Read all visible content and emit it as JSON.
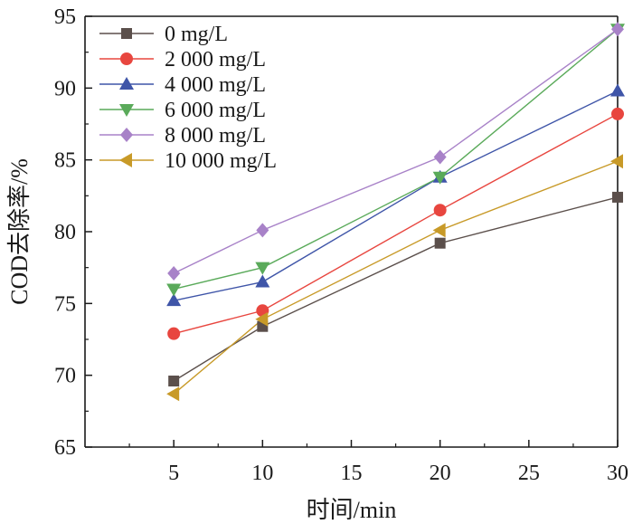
{
  "chart_data": {
    "type": "line",
    "title": "",
    "xlabel": "时间/min",
    "ylabel": "COD去除率/%",
    "x": [
      5,
      10,
      20,
      30
    ],
    "xlim": [
      0,
      30
    ],
    "ylim": [
      65,
      95
    ],
    "xticks": [
      5,
      10,
      15,
      20,
      25,
      30
    ],
    "yticks": [
      65,
      70,
      75,
      80,
      85,
      90,
      95
    ],
    "grid": false,
    "legend_position": "top-left",
    "series": [
      {
        "name": "0 mg/L",
        "values": [
          69.6,
          73.4,
          79.2,
          82.4
        ],
        "color": "#5b4f4b",
        "marker": "square"
      },
      {
        "name": "2 000 mg/L",
        "values": [
          72.9,
          74.5,
          81.5,
          88.2
        ],
        "color": "#e8463f",
        "marker": "circle"
      },
      {
        "name": "4 000 mg/L",
        "values": [
          75.2,
          76.5,
          83.8,
          89.8
        ],
        "color": "#3f55a8",
        "marker": "triangle-up"
      },
      {
        "name": "6 000 mg/L",
        "values": [
          76.0,
          77.5,
          83.8,
          94.1
        ],
        "color": "#5aaa5a",
        "marker": "triangle-down"
      },
      {
        "name": "8 000 mg/L",
        "values": [
          77.1,
          80.1,
          85.2,
          94.1
        ],
        "color": "#a882c8",
        "marker": "diamond"
      },
      {
        "name": "10 000 mg/L",
        "values": [
          68.7,
          73.9,
          80.1,
          84.9
        ],
        "color": "#c89a28",
        "marker": "triangle-left"
      }
    ]
  }
}
